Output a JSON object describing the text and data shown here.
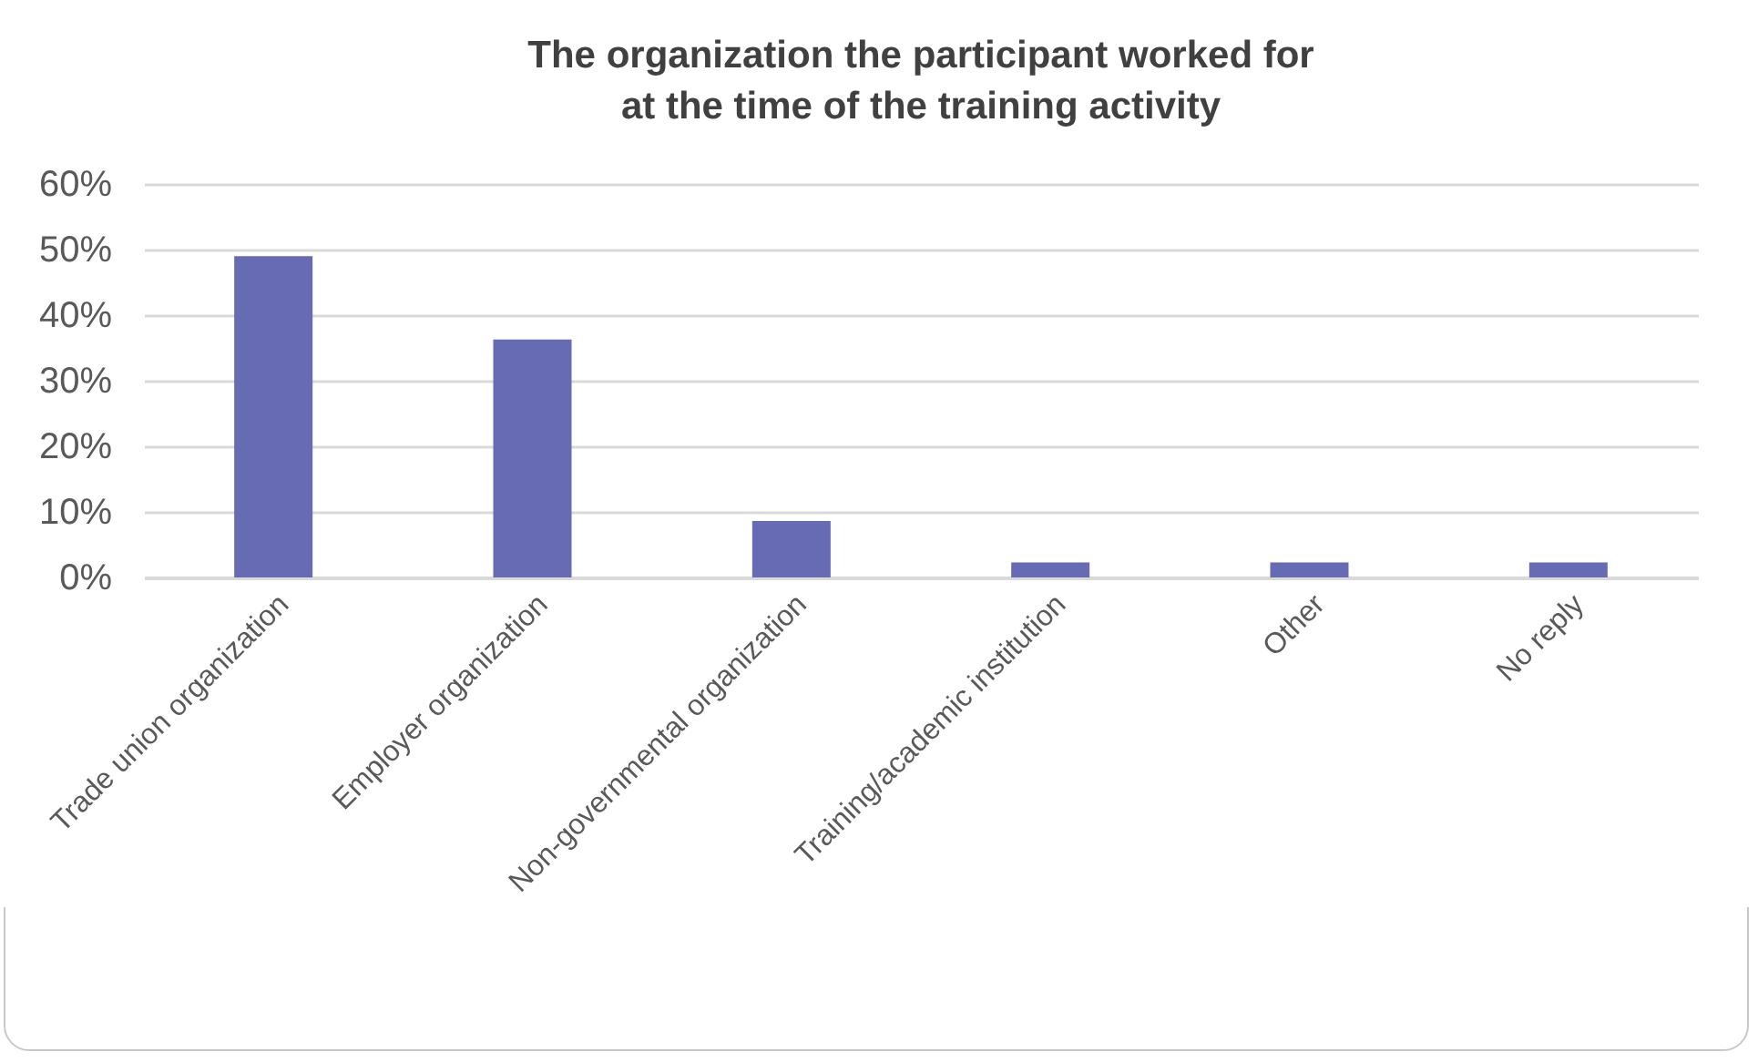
{
  "chart_data": {
    "type": "bar",
    "title": "The organization the participant worked for\nat the time of the training activity",
    "categories": [
      "Trade union organization",
      "Employer organization",
      "Non-governmental organization",
      "Training/academic institution",
      "Other",
      "No reply"
    ],
    "values": [
      49,
      36.3,
      8.6,
      2.3,
      2.3,
      2.3
    ],
    "color": "#666bb4",
    "ylim": [
      0,
      60
    ],
    "yticks": [
      {
        "value": 0,
        "label": "0%"
      },
      {
        "value": 10,
        "label": "10%"
      },
      {
        "value": 20,
        "label": "20%"
      },
      {
        "value": 30,
        "label": "30%"
      },
      {
        "value": 40,
        "label": "40%"
      },
      {
        "value": 50,
        "label": "50%"
      },
      {
        "value": 60,
        "label": "60%"
      }
    ],
    "grid": "y"
  }
}
